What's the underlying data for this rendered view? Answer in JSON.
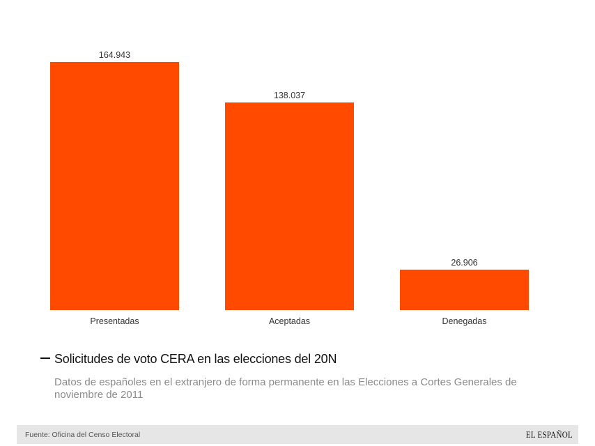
{
  "chart_data": {
    "type": "bar",
    "categories": [
      "Presentadas",
      "Aceptadas",
      "Denegadas"
    ],
    "values": [
      164943,
      138037,
      26906
    ],
    "value_labels": [
      "164.943",
      "138.037",
      "26.906"
    ],
    "title": "Solicitudes de voto CERA en las elecciones del 20N",
    "subtitle": "Datos de españoles en el extranjero de forma permanente en las Elecciones a Cortes Generales de noviembre de 2011",
    "xlabel": "",
    "ylabel": "",
    "ylim": [
      0,
      164943
    ],
    "grid": false,
    "bar_color": "#ff4a00"
  },
  "footer": {
    "source": "Fuente: Oficina del Censo Electoral",
    "brand": "EL ESPAÑOL"
  }
}
